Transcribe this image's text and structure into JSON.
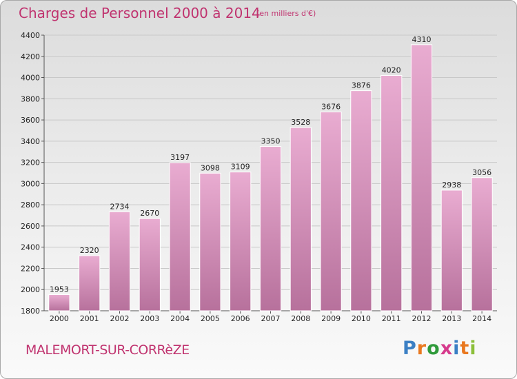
{
  "header": {
    "title": "Charges de Personnel 2000 à 2014",
    "unit_note": "(en milliers d'€)"
  },
  "footer": {
    "city": "MALEMORT-SUR-CORRèZE",
    "logo_letters": [
      "P",
      "r",
      "o",
      "x",
      "i",
      "t",
      "i"
    ],
    "logo_colors": [
      "#3a7fc4",
      "#e9781f",
      "#2f9a3a",
      "#d63a8c",
      "#3a7fc4",
      "#e9781f",
      "#8cbf3a"
    ]
  },
  "colors": {
    "bar_top": "#e9acd1",
    "bar_bottom": "#b7719c",
    "title": "#c0336f"
  },
  "chart_data": {
    "type": "bar",
    "title": "Charges de Personnel 2000 à 2014",
    "subtitle": "(en milliers d'€)",
    "categories": [
      "2000",
      "2001",
      "2002",
      "2003",
      "2004",
      "2005",
      "2006",
      "2007",
      "2008",
      "2009",
      "2010",
      "2011",
      "2012",
      "2013",
      "2014"
    ],
    "values": [
      1953,
      2320,
      2734,
      2670,
      3197,
      3098,
      3109,
      3350,
      3528,
      3676,
      3876,
      4020,
      4310,
      2938,
      3056
    ],
    "ylim": [
      1800,
      4400
    ],
    "yticks": [
      1800,
      2000,
      2200,
      2400,
      2600,
      2800,
      3000,
      3200,
      3400,
      3600,
      3800,
      4000,
      4200,
      4400
    ],
    "grid": true,
    "legend": "none"
  }
}
